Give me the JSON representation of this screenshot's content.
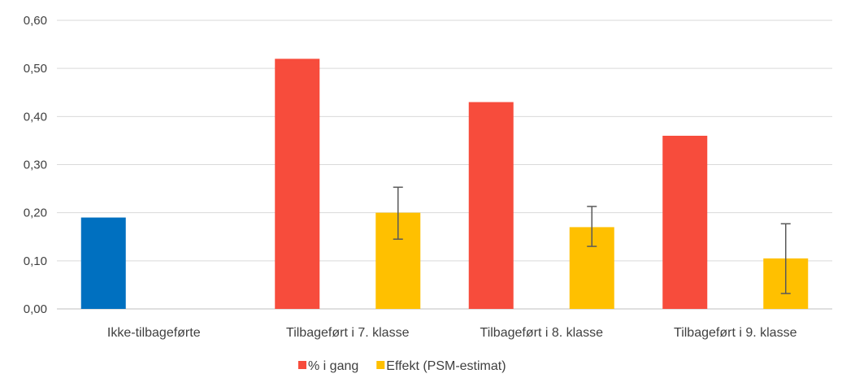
{
  "chart_data": {
    "type": "bar",
    "categories": [
      "Ikke-tilbageførte",
      "Tilbageført i 7. klasse",
      "Tilbageført i 8. klasse",
      "Tilbageført i 9. klasse"
    ],
    "series": [
      {
        "name": "% i gang",
        "values": [
          0.19,
          0.52,
          0.43,
          0.36
        ],
        "point_colors": [
          "#0070c0",
          "#f74c3c",
          "#f74c3c",
          "#f74c3c"
        ]
      },
      {
        "name": "Effekt (PSM-estimat)",
        "values": [
          0.0,
          0.2,
          0.17,
          0.105
        ],
        "error_low": [
          null,
          0.145,
          0.13,
          0.032
        ],
        "error_high": [
          null,
          0.253,
          0.213,
          0.177
        ],
        "point_colors": [
          "#ffc000",
          "#ffc000",
          "#ffc000",
          "#ffc000"
        ]
      }
    ],
    "y_ticks": [
      "0,00",
      "0,10",
      "0,20",
      "0,30",
      "0,40",
      "0,50",
      "0,60"
    ],
    "ylim": [
      0,
      0.6
    ],
    "grid": true,
    "legend": {
      "placement": "bottom",
      "entries": [
        {
          "label": "% i gang",
          "color": "#f74c3c"
        },
        {
          "label": "Effekt (PSM-estimat)",
          "color": "#ffc000"
        }
      ]
    },
    "title": "",
    "xlabel": "",
    "ylabel": ""
  }
}
